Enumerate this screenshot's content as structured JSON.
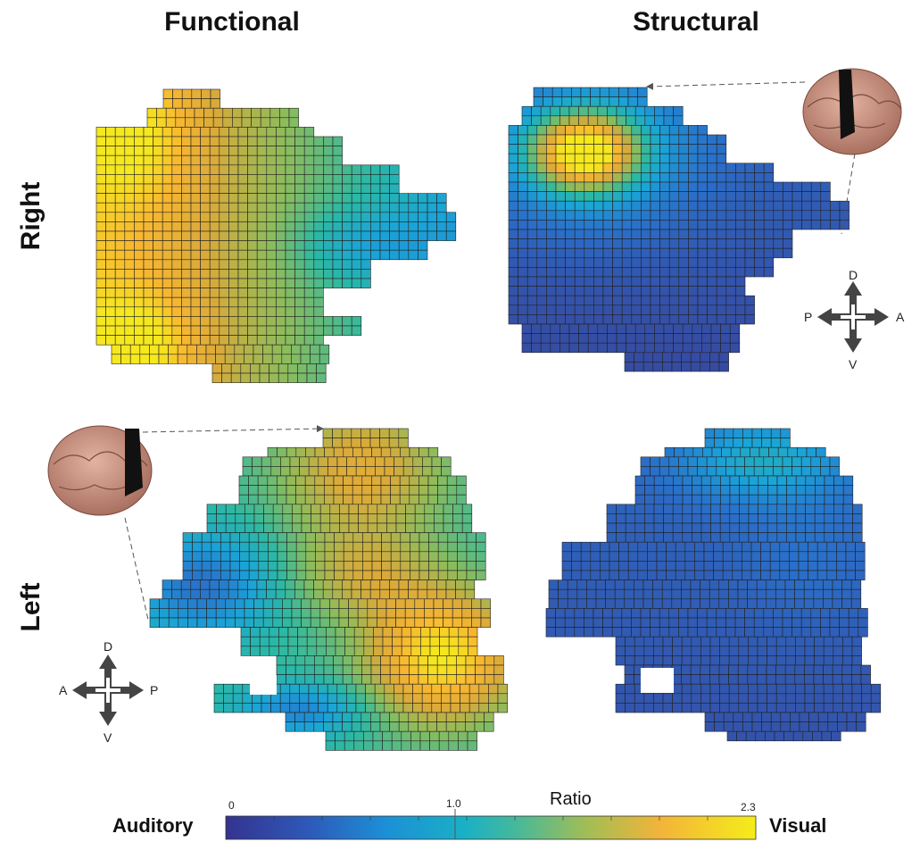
{
  "titles": {
    "functional": "Functional",
    "structural": "Structural",
    "right": "Right",
    "left": "Left"
  },
  "compass": {
    "d": "D",
    "v": "V",
    "right_row_left": "P",
    "right_row_right": "A",
    "left_row_left": "A",
    "left_row_right": "P"
  },
  "colorbar": {
    "title": "Ratio",
    "low_label": "Auditory",
    "high_label": "Visual",
    "ticks": [
      "0",
      "1.0",
      "2.3"
    ],
    "range": [
      0,
      2.3
    ],
    "colors": [
      "#3b3d93",
      "#2a6fc9",
      "#1aa3d8",
      "#2bb8a5",
      "#8cbc5c",
      "#d9aa3a",
      "#f7b631",
      "#f5e81e"
    ]
  },
  "panels": [
    {
      "id": "functional-right",
      "field": "functional-right"
    },
    {
      "id": "structural-right",
      "field": "structural-right"
    },
    {
      "id": "functional-left",
      "field": "functional-left"
    },
    {
      "id": "structural-left",
      "field": "structural-left"
    }
  ]
}
